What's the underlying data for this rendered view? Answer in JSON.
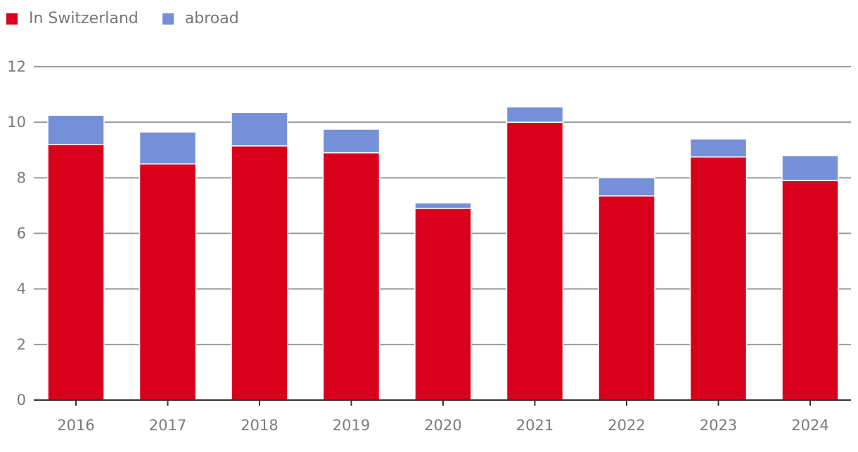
{
  "legend": [
    {
      "label": "In Switzerland",
      "color": "#d9001b"
    },
    {
      "label": "abroad",
      "color": "#758fd9"
    }
  ],
  "chart_data": {
    "type": "bar",
    "stacked": true,
    "categories": [
      "2016",
      "2017",
      "2018",
      "2019",
      "2020",
      "2021",
      "2022",
      "2023",
      "2024"
    ],
    "series": [
      {
        "name": "In Switzerland",
        "color": "#d9001b",
        "values": [
          9.2,
          8.5,
          9.15,
          8.9,
          6.9,
          10.0,
          7.35,
          8.75,
          7.9
        ]
      },
      {
        "name": "abroad",
        "color": "#758fd9",
        "values": [
          1.05,
          1.15,
          1.2,
          0.85,
          0.2,
          0.55,
          0.65,
          0.65,
          0.9
        ]
      }
    ],
    "ylim": [
      0,
      12
    ],
    "yticks": [
      "0",
      "2",
      "4",
      "6",
      "8",
      "10",
      "12"
    ],
    "grid": true,
    "legend_position": "top-left",
    "title": "",
    "xlabel": "",
    "ylabel": ""
  }
}
